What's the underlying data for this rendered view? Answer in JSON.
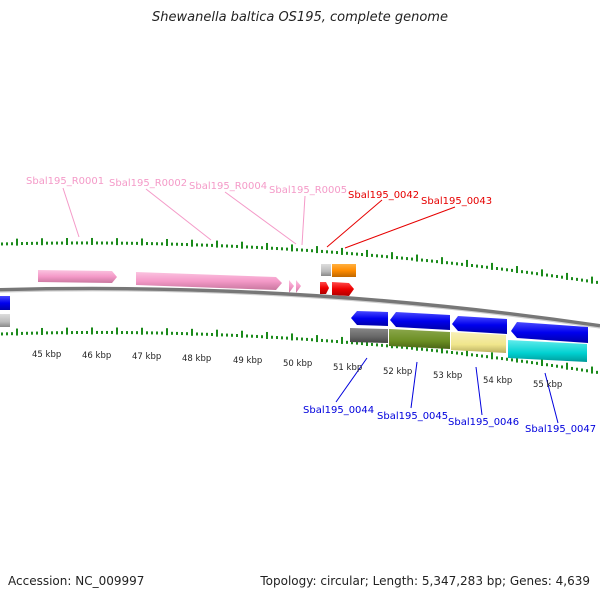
{
  "title": "Shewanella baltica OS195, complete genome",
  "footer": {
    "accession": "Accession: NC_009997",
    "summary": "Topology: circular; Length: 5,347,283 bp; Genes: 4,639"
  },
  "colors": {
    "rna": "#f49ac8",
    "forward_cds": "#e60000",
    "reverse_cds": "#0000dd",
    "tick": "#1a8a1a",
    "backbone": "#888888"
  },
  "scale": {
    "unit": "kbp",
    "labels": [
      "45 kbp",
      "46 kbp",
      "47 kbp",
      "48 kbp",
      "49 kbp",
      "50 kbp",
      "51 kbp",
      "52 kbp",
      "53 kbp",
      "54 kbp",
      "55 kbp"
    ]
  },
  "features": {
    "forward": [
      {
        "label": "Sbal195_R0001",
        "type": "rna"
      },
      {
        "label": "Sbal195_R0002",
        "type": "rna"
      },
      {
        "label": "Sbal195_R0004",
        "type": "rna"
      },
      {
        "label": "Sbal195_R0005",
        "type": "rna"
      },
      {
        "label": "Sbal195_0042",
        "type": "cds"
      },
      {
        "label": "Sbal195_0043",
        "type": "cds"
      }
    ],
    "reverse": [
      {
        "label": "Sbal195_0044",
        "type": "cds"
      },
      {
        "label": "Sbal195_0045",
        "type": "cds"
      },
      {
        "label": "Sbal195_0046",
        "type": "cds"
      },
      {
        "label": "Sbal195_0047",
        "type": "cds"
      }
    ]
  }
}
